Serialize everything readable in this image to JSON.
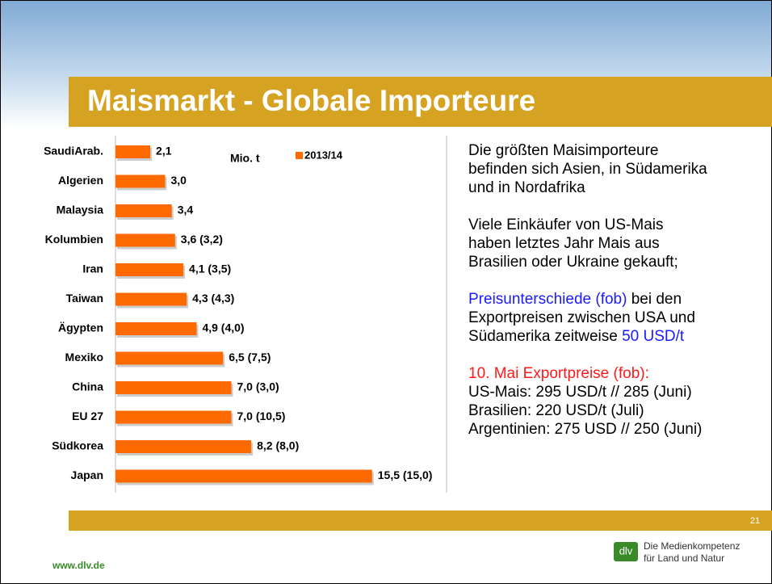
{
  "title": "Maismarkt - Globale Importeure",
  "chart_data": {
    "type": "barh",
    "categories": [
      "SaudiArab.",
      "Algerien",
      "Malaysia",
      "Kolumbien",
      "Iran",
      "Taiwan",
      "Ägypten",
      "Mexiko",
      "China",
      "EU 27",
      "Südkorea",
      "Japan"
    ],
    "series": [
      {
        "name": "2013/14",
        "color": "#ff6a00",
        "values": [
          2.1,
          3.0,
          3.4,
          3.6,
          4.1,
          4.3,
          4.9,
          6.5,
          7.0,
          7.0,
          8.2,
          15.5
        ],
        "value_labels": [
          "2,1",
          "3,0",
          "3,4",
          "3,6 (3,2)",
          "4,1 (3,5)",
          "4,3 (4,3)",
          "4,9 (4,0)",
          "6,5 (7,5)",
          "7,0 (3,0)",
          "7,0 (10,5)",
          "8,2 (8,0)",
          "15,5 (15,0)"
        ]
      }
    ],
    "unit_label": "Mio. t",
    "xlim": [
      0,
      20
    ]
  },
  "paragraphs": [
    [
      [
        {
          "text": "Die größten Maisimporteure",
          "color": "#000000"
        }
      ],
      [
        {
          "text": "befinden sich Asien, in Südamerika",
          "color": "#000000"
        }
      ],
      [
        {
          "text": "und in Nordafrika",
          "color": "#000000"
        }
      ]
    ],
    [
      [
        {
          "text": "Viele Einkäufer von US-Mais",
          "color": "#000000"
        }
      ],
      [
        {
          "text": "haben letztes Jahr Mais aus",
          "color": "#000000"
        }
      ],
      [
        {
          "text": "Brasilien oder Ukraine gekauft;",
          "color": "#000000"
        }
      ]
    ],
    [
      [
        {
          "text": "Preisunterschiede (fob)",
          "color": "#1a1aff"
        },
        {
          "text": "  bei den",
          "color": "#000000"
        }
      ],
      [
        {
          "text": "Exportpreisen zwischen USA und",
          "color": "#000000"
        }
      ],
      [
        {
          "text": "Südamerika zeitweise ",
          "color": "#000000"
        },
        {
          "text": "50 USD/t",
          "color": "#1a1aff"
        }
      ]
    ],
    [
      [
        {
          "text": "10. Mai Exportpreise (fob):",
          "color": "#ff1a1a"
        }
      ],
      [
        {
          "text": "US-Mais: 295 USD/t // 285 (Juni)",
          "color": "#000000"
        }
      ],
      [
        {
          "text": "Brasilien:          220 USD/t (Juli)",
          "color": "#000000"
        }
      ],
      [
        {
          "text": "Argentinien:  275 USD // 250 (Juni)",
          "color": "#000000"
        }
      ]
    ]
  ],
  "page_number": "21",
  "footer": {
    "url": "www.dlv.de",
    "logo": "dlv",
    "tagline": [
      "Die Medienkompetenz",
      "für Land und Natur"
    ]
  }
}
